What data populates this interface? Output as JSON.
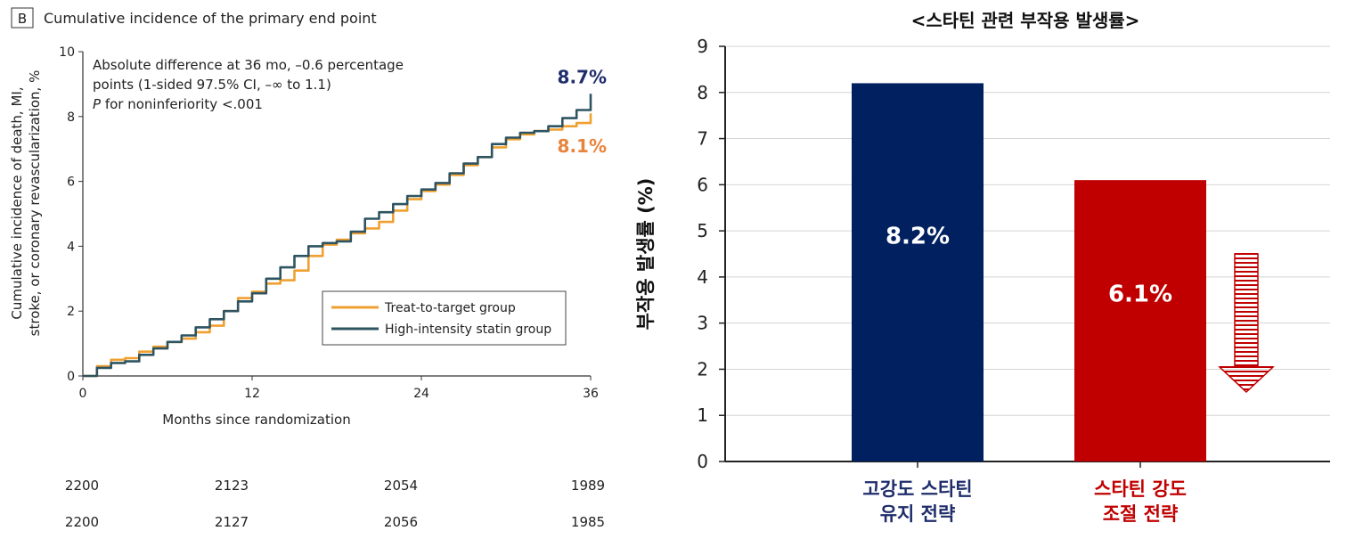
{
  "chart_data": [
    {
      "type": "line",
      "panel_label": "B",
      "title": "Cumulative incidence of the primary end point",
      "xlabel": "Months since randomization",
      "ylabel_lines": [
        "Cumulative incidence of death, MI,",
        "stroke, or coronary revascularization, %"
      ],
      "xlim": [
        0,
        36
      ],
      "ylim": [
        0,
        10
      ],
      "xticks": [
        0,
        12,
        24,
        36
      ],
      "yticks": [
        0,
        2,
        4,
        6,
        8,
        10
      ],
      "annotation_lines": [
        "Absolute difference at 36 mo, –0.6 percentage",
        "points (1-sided 97.5% CI, –∞ to 1.1)"
      ],
      "annotation_p": {
        "italic": "P",
        "rest": " for noninferiority <.001"
      },
      "legend_position": "bottom-right",
      "series": [
        {
          "name": "Treat-to-target group",
          "color": "#f0a030",
          "end_label": "8.1%",
          "end_label_color": "#e8843c",
          "x": [
            0,
            1,
            2,
            3,
            4,
            5,
            6,
            7,
            8,
            9,
            10,
            11,
            12,
            13,
            14,
            15,
            16,
            17,
            18,
            19,
            20,
            21,
            22,
            23,
            24,
            25,
            26,
            27,
            28,
            29,
            30,
            31,
            32,
            33,
            34,
            35,
            36
          ],
          "y": [
            0,
            0.3,
            0.5,
            0.55,
            0.75,
            0.9,
            1.05,
            1.15,
            1.35,
            1.55,
            2.0,
            2.4,
            2.6,
            2.85,
            2.95,
            3.25,
            3.7,
            4.05,
            4.2,
            4.4,
            4.55,
            4.75,
            5.1,
            5.45,
            5.7,
            5.9,
            6.2,
            6.5,
            6.75,
            7.05,
            7.3,
            7.45,
            7.55,
            7.6,
            7.7,
            7.8,
            8.1
          ]
        },
        {
          "name": "High-intensity statin group",
          "color": "#2e5461",
          "end_label": "8.7%",
          "end_label_color": "#1f2d6b",
          "x": [
            0,
            1,
            2,
            3,
            4,
            5,
            6,
            7,
            8,
            9,
            10,
            11,
            12,
            13,
            14,
            15,
            16,
            17,
            18,
            19,
            20,
            21,
            22,
            23,
            24,
            25,
            26,
            27,
            28,
            29,
            30,
            31,
            32,
            33,
            34,
            35,
            36
          ],
          "y": [
            0,
            0.25,
            0.4,
            0.45,
            0.65,
            0.85,
            1.05,
            1.25,
            1.5,
            1.75,
            2.0,
            2.3,
            2.55,
            3.0,
            3.35,
            3.7,
            4.0,
            4.1,
            4.15,
            4.45,
            4.85,
            5.05,
            5.3,
            5.55,
            5.75,
            5.95,
            6.25,
            6.55,
            6.75,
            7.15,
            7.35,
            7.5,
            7.55,
            7.7,
            7.95,
            8.2,
            8.7
          ]
        }
      ],
      "at_risk": [
        [
          "2200",
          "2123",
          "2054",
          "1989"
        ],
        [
          "2200",
          "2127",
          "2056",
          "1985"
        ]
      ]
    },
    {
      "type": "bar",
      "title": "<스타틴 관련 부작용 발생률>",
      "ylabel": "부작용 발생률 (%)",
      "ylim": [
        0,
        9
      ],
      "yticks": [
        0,
        1,
        2,
        3,
        4,
        5,
        6,
        7,
        8,
        9
      ],
      "grid": true,
      "categories": [
        {
          "lines": [
            "고강도 스타틴",
            "유지 전략"
          ],
          "color": "#1f2d6b"
        },
        {
          "lines": [
            "스타틴 강도",
            "조절 전략"
          ],
          "color": "#c00000"
        }
      ],
      "values": [
        8.2,
        6.1
      ],
      "value_labels": [
        "8.2%",
        "6.1%"
      ],
      "bar_colors": [
        "#012060",
        "#c00000"
      ],
      "decoration": "down-arrow"
    }
  ]
}
